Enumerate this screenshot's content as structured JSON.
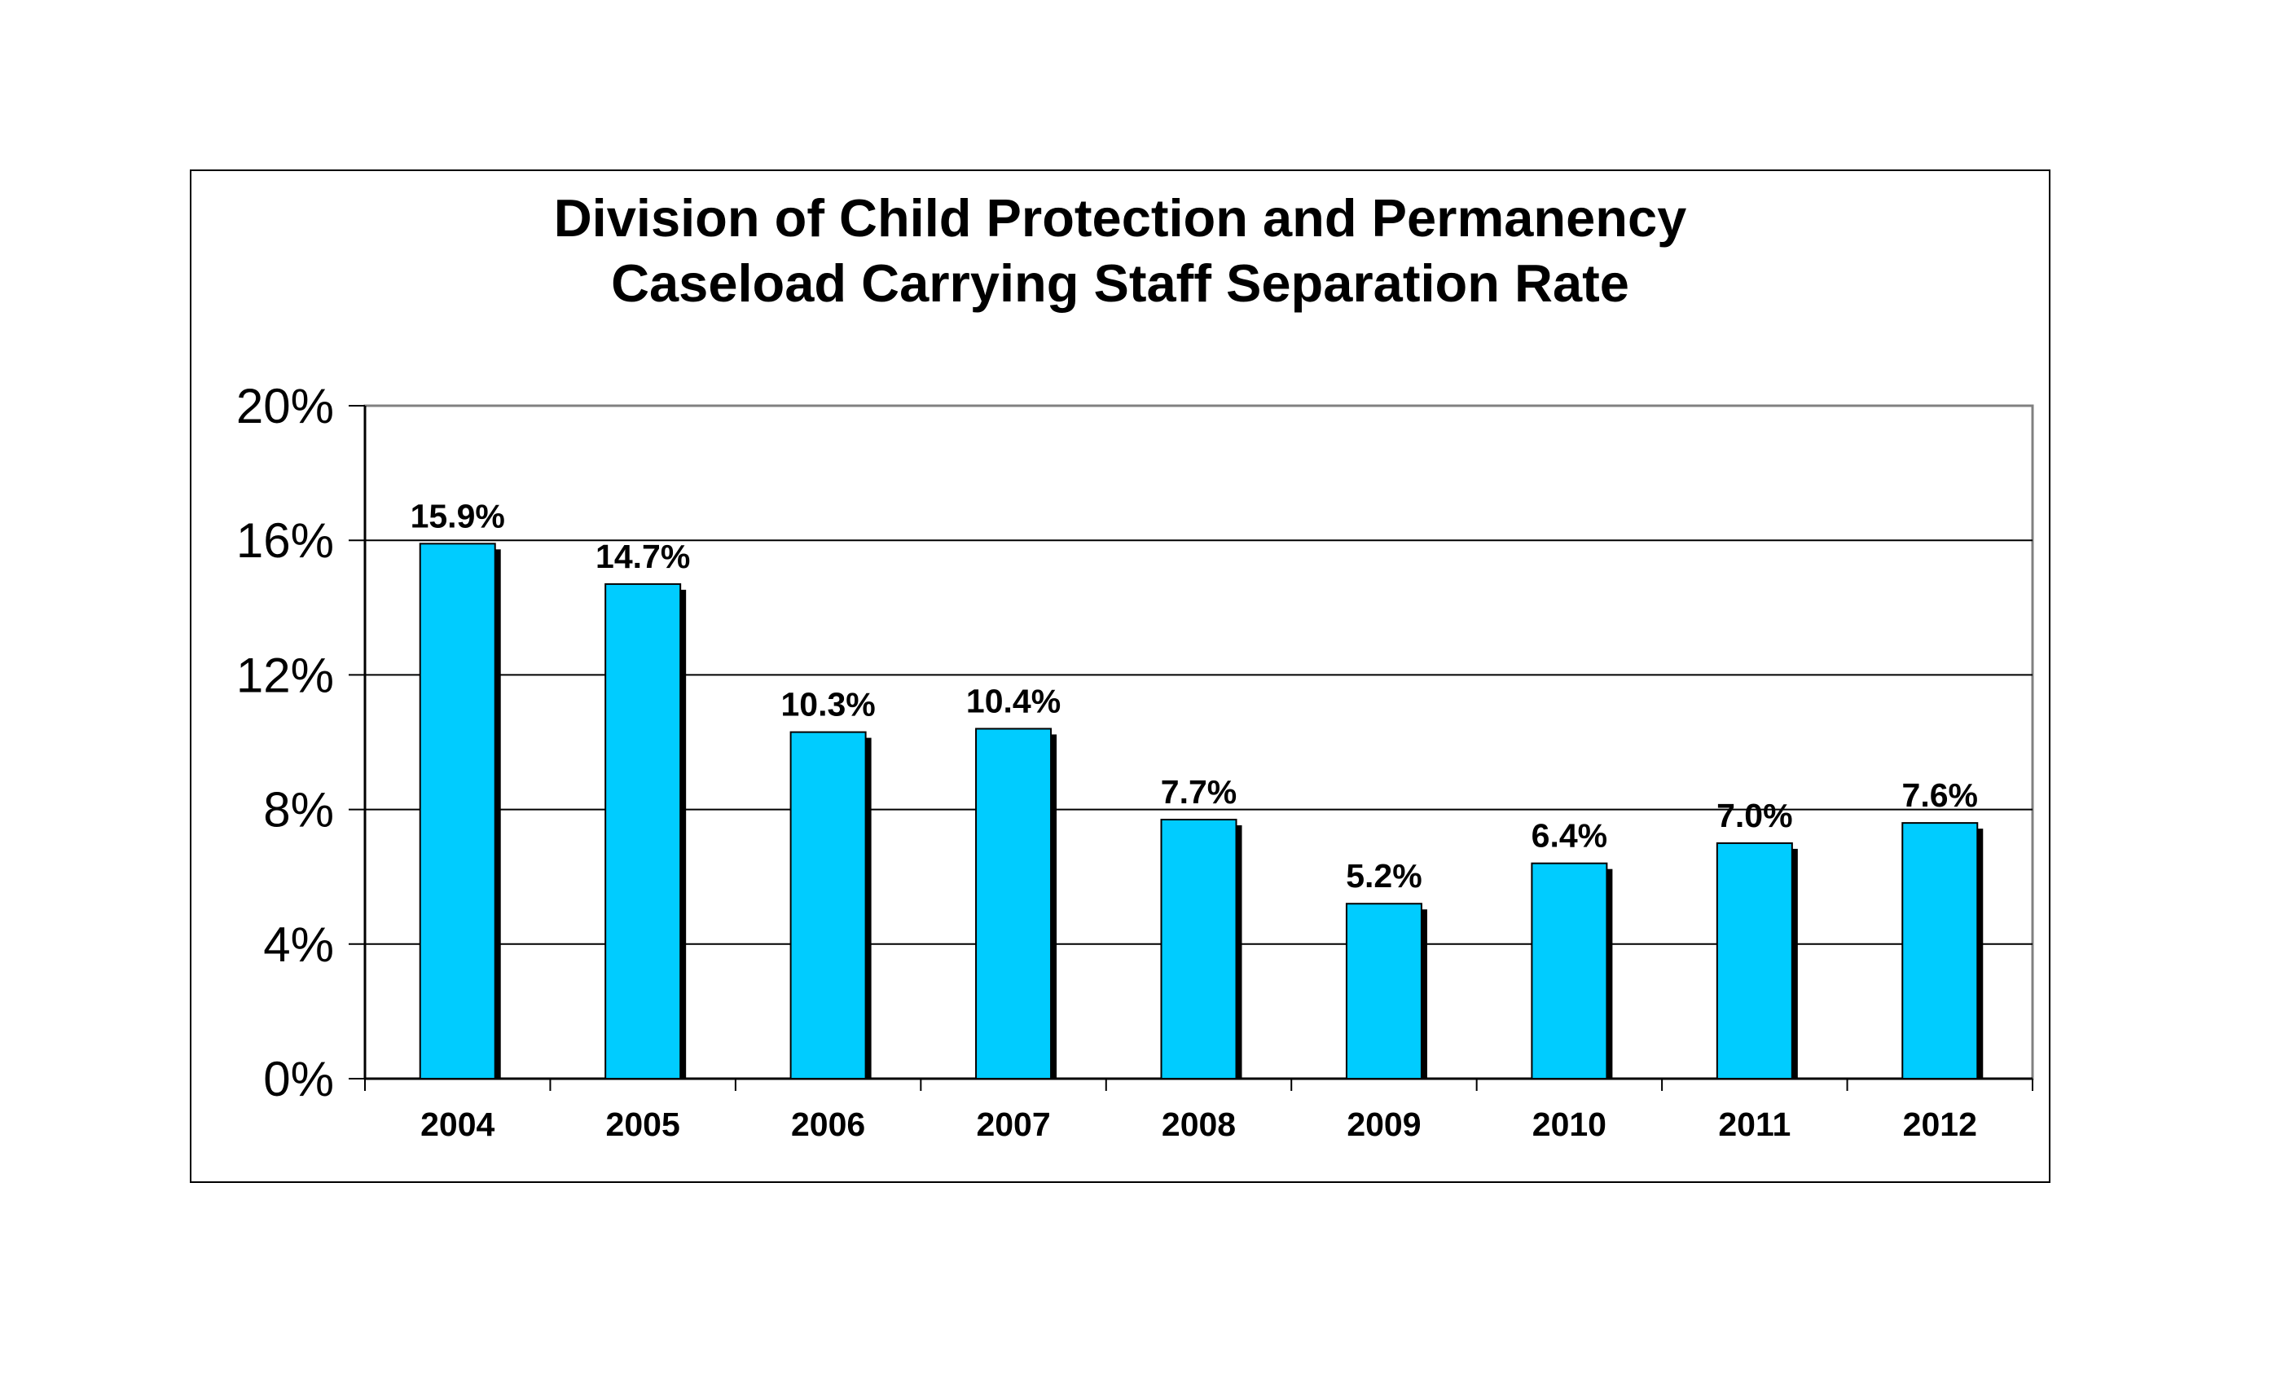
{
  "chart_data": {
    "type": "bar",
    "title": "Division of Child Protection and Permanency",
    "subtitle": "Caseload Carrying Staff Separation Rate",
    "xlabel": "",
    "ylabel": "",
    "categories": [
      "2004",
      "2005",
      "2006",
      "2007",
      "2008",
      "2009",
      "2010",
      "2011",
      "2012"
    ],
    "values": [
      15.9,
      14.7,
      10.3,
      10.4,
      7.7,
      5.2,
      6.4,
      7.0,
      7.6
    ],
    "data_labels": [
      "15.9%",
      "14.7%",
      "10.3%",
      "10.4%",
      "7.7%",
      "5.2%",
      "6.4%",
      "7.0%",
      "7.6%"
    ],
    "ylim": [
      0,
      20
    ],
    "yticks": [
      0,
      4,
      8,
      12,
      16,
      20
    ],
    "ytick_labels": [
      "0%",
      "4%",
      "8%",
      "12%",
      "16%",
      "20%"
    ],
    "grid": true,
    "legend": "none",
    "colors": {
      "bar": "#00ccff",
      "bar_shadow": "#000000",
      "gridline": "#000000",
      "frame": "#000000"
    }
  }
}
